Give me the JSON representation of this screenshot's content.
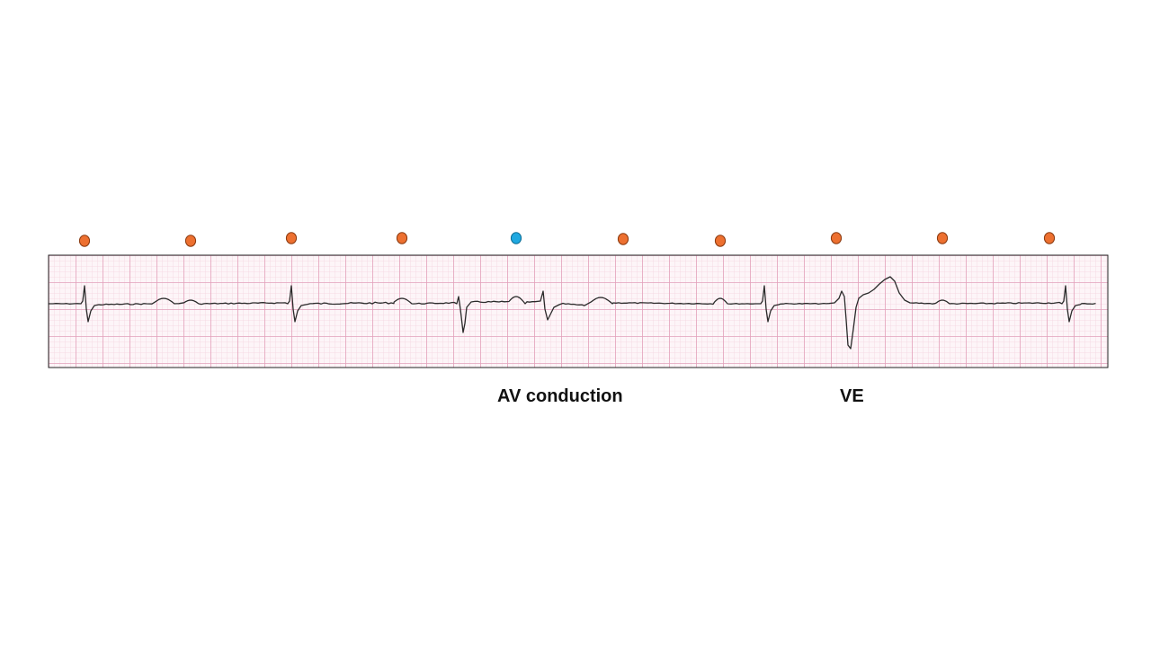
{
  "colors": {
    "atrial_marker": "#ED7030",
    "conducted_marker": "#1FA8E0",
    "marker_outline": "#8A3A10",
    "conducted_outline": "#0E6E96",
    "grid_minor": "#F3D4E0",
    "grid_major": "#E2A0BA",
    "trace": "#2a2a2a",
    "strip_border": "#222222"
  },
  "markers": [
    {
      "kind": "atrial"
    },
    {
      "kind": "atrial"
    },
    {
      "kind": "atrial"
    },
    {
      "kind": "atrial"
    },
    {
      "kind": "conducted"
    },
    {
      "kind": "atrial"
    },
    {
      "kind": "atrial"
    },
    {
      "kind": "atrial"
    },
    {
      "kind": "atrial"
    },
    {
      "kind": "atrial"
    }
  ],
  "annotations": {
    "av_conduction": "AV conduction",
    "ve": "VE"
  }
}
